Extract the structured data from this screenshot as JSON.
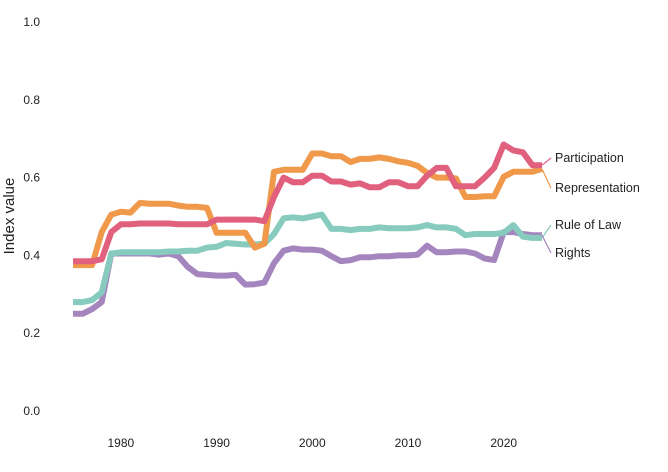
{
  "chart_data": {
    "type": "line",
    "title": "",
    "xlabel": "",
    "ylabel": "Index value",
    "xlim": [
      1975,
      2024
    ],
    "ylim": [
      0,
      1
    ],
    "xticks": [
      "1980",
      "1990",
      "2000",
      "2010",
      "2020"
    ],
    "yticks": [
      "0.0",
      "0.2",
      "0.4",
      "0.6",
      "0.8",
      "1.0"
    ],
    "grid": false,
    "legend": "direct labels at right end of lines",
    "x": [
      1975,
      1976,
      1977,
      1978,
      1979,
      1980,
      1981,
      1982,
      1983,
      1984,
      1985,
      1986,
      1987,
      1988,
      1989,
      1990,
      1991,
      1992,
      1993,
      1994,
      1995,
      1996,
      1997,
      1998,
      1999,
      2000,
      2001,
      2002,
      2003,
      2004,
      2005,
      2006,
      2007,
      2008,
      2009,
      2010,
      2011,
      2012,
      2013,
      2014,
      2015,
      2016,
      2017,
      2018,
      2019,
      2020,
      2021,
      2022,
      2023,
      2024
    ],
    "series": [
      {
        "name": "Participation",
        "color": "#e0607e",
        "values": [
          0.385,
          0.385,
          0.385,
          0.39,
          0.46,
          0.48,
          0.48,
          0.482,
          0.482,
          0.482,
          0.482,
          0.48,
          0.48,
          0.48,
          0.48,
          0.492,
          0.492,
          0.492,
          0.492,
          0.492,
          0.488,
          0.55,
          0.6,
          0.588,
          0.588,
          0.605,
          0.605,
          0.59,
          0.59,
          0.582,
          0.585,
          0.575,
          0.575,
          0.588,
          0.588,
          0.578,
          0.578,
          0.605,
          0.625,
          0.625,
          0.578,
          0.578,
          0.578,
          0.6,
          0.625,
          0.685,
          0.67,
          0.665,
          0.632,
          0.632
        ]
      },
      {
        "name": "Representation",
        "color": "#f0994b",
        "values": [
          0.375,
          0.375,
          0.375,
          0.46,
          0.505,
          0.512,
          0.51,
          0.535,
          0.533,
          0.533,
          0.533,
          0.528,
          0.525,
          0.525,
          0.522,
          0.458,
          0.458,
          0.458,
          0.458,
          0.42,
          0.43,
          0.615,
          0.62,
          0.62,
          0.62,
          0.662,
          0.662,
          0.655,
          0.655,
          0.64,
          0.648,
          0.648,
          0.652,
          0.648,
          0.642,
          0.638,
          0.63,
          0.612,
          0.6,
          0.6,
          0.598,
          0.55,
          0.55,
          0.552,
          0.552,
          0.602,
          0.615,
          0.615,
          0.615,
          0.622
        ]
      },
      {
        "name": "Rule of Law",
        "color": "#86cbbd",
        "values": [
          0.28,
          0.28,
          0.285,
          0.305,
          0.405,
          0.408,
          0.408,
          0.408,
          0.408,
          0.408,
          0.41,
          0.41,
          0.412,
          0.412,
          0.42,
          0.422,
          0.432,
          0.43,
          0.428,
          0.428,
          0.43,
          0.455,
          0.495,
          0.498,
          0.495,
          0.5,
          0.505,
          0.468,
          0.468,
          0.465,
          0.468,
          0.468,
          0.472,
          0.47,
          0.47,
          0.47,
          0.472,
          0.478,
          0.472,
          0.472,
          0.468,
          0.452,
          0.455,
          0.455,
          0.455,
          0.458,
          0.478,
          0.448,
          0.445,
          0.445
        ]
      },
      {
        "name": "Rights",
        "color": "#a585be",
        "values": [
          0.25,
          0.25,
          0.262,
          0.28,
          0.405,
          0.405,
          0.405,
          0.405,
          0.405,
          0.402,
          0.405,
          0.398,
          0.37,
          0.352,
          0.35,
          0.348,
          0.348,
          0.35,
          0.325,
          0.326,
          0.33,
          0.38,
          0.412,
          0.418,
          0.415,
          0.415,
          0.412,
          0.398,
          0.385,
          0.388,
          0.395,
          0.395,
          0.398,
          0.398,
          0.4,
          0.4,
          0.402,
          0.425,
          0.408,
          0.408,
          0.41,
          0.41,
          0.405,
          0.392,
          0.388,
          0.46,
          0.46,
          0.455,
          0.452,
          0.452
        ]
      }
    ]
  }
}
